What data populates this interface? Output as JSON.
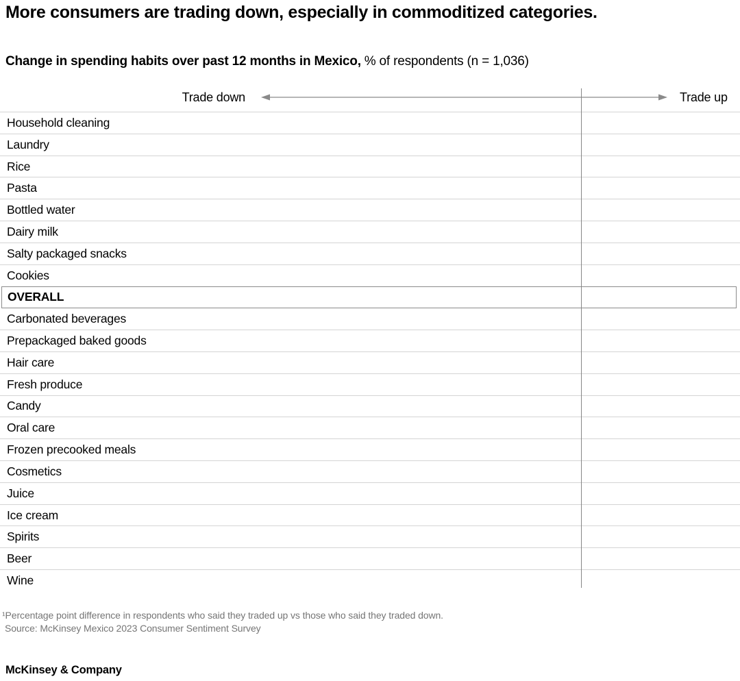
{
  "header": {
    "title": "More consumers are trading down, especially in commoditized categories.",
    "subtitle_bold": "Change in spending habits over past 12 months in Mexico,",
    "subtitle_rest": "% of respondents (n = 1,036)"
  },
  "chart_data": {
    "type": "bar",
    "orientation": "horizontal-diverging",
    "title": "Change in spending habits over past 12 months in Mexico",
    "units": "% of respondents (n = 1,036)",
    "axis_labels": {
      "negative": "Trade down",
      "positive": "Trade up"
    },
    "categories": [
      "Household cleaning",
      "Laundry",
      "Rice",
      "Pasta",
      "Bottled water",
      "Dairy milk",
      "Salty packaged snacks",
      "Cookies",
      "OVERALL",
      "Carbonated beverages",
      "Prepackaged baked goods",
      "Hair care",
      "Fresh produce",
      "Candy",
      "Oral care",
      "Frozen precooked meals",
      "Cosmetics",
      "Juice",
      "Ice cream",
      "Spirits",
      "Beer",
      "Wine"
    ],
    "emphasized_category": "OVERALL",
    "series": [],
    "grid": true,
    "legend": false
  },
  "colors": {
    "gridline": "#d4d4d4",
    "axis_line": "#858585",
    "arrow": "#8a8a8a",
    "overall_box_border": "#8a8a8a",
    "footnote_text": "#757575",
    "text": "#000000",
    "background": "#ffffff"
  },
  "footnotes": {
    "note": "¹Percentage point difference in respondents who said they traded up vs those who said they traded down.",
    "source": "Source: McKinsey Mexico 2023 Consumer Sentiment Survey"
  },
  "footer": {
    "wordmark": "McKinsey & Company"
  }
}
